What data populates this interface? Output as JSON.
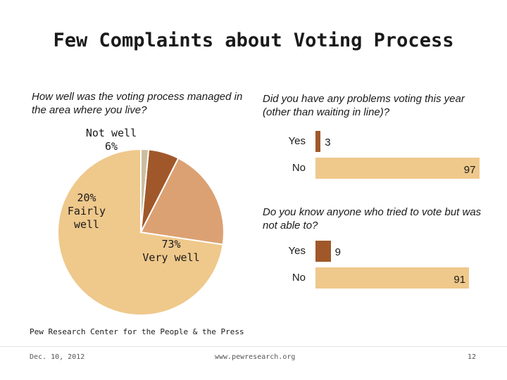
{
  "title": "Few Complaints about Voting Process",
  "colors": {
    "very_well": "#efc88b",
    "fairly_well": "#dca173",
    "not_well": "#a0582a",
    "dont_know": "#cbbe9e",
    "bar_yes": "#a0582a",
    "bar_no": "#efc88b"
  },
  "chart_data": [
    {
      "type": "pie",
      "title": "How well was the voting process managed in the area where you live?",
      "slices": [
        {
          "key": "very_well",
          "label": "73%\nVery well",
          "value": 73
        },
        {
          "key": "fairly_well",
          "label": "20%\nFairly\nwell",
          "value": 20
        },
        {
          "key": "not_well",
          "label": "Not well\n6%",
          "value": 6
        },
        {
          "key": "dont_know",
          "label": "",
          "value": 1.5
        }
      ]
    },
    {
      "type": "bar",
      "orientation": "horizontal",
      "title": "Did you have any problems voting this year (other than waiting in line)?",
      "categories": [
        "Yes",
        "No"
      ],
      "values": [
        3,
        97
      ],
      "xlim": [
        0,
        100
      ]
    },
    {
      "type": "bar",
      "orientation": "horizontal",
      "title": "Do you know anyone who tried to vote but was not able to?",
      "categories": [
        "Yes",
        "No"
      ],
      "values": [
        9,
        91
      ],
      "xlim": [
        0,
        100
      ]
    }
  ],
  "footer": {
    "source": "Pew Research Center for the People & the Press",
    "date": "Dec. 10, 2012",
    "url": "www.pewresearch.org",
    "page": "12"
  }
}
